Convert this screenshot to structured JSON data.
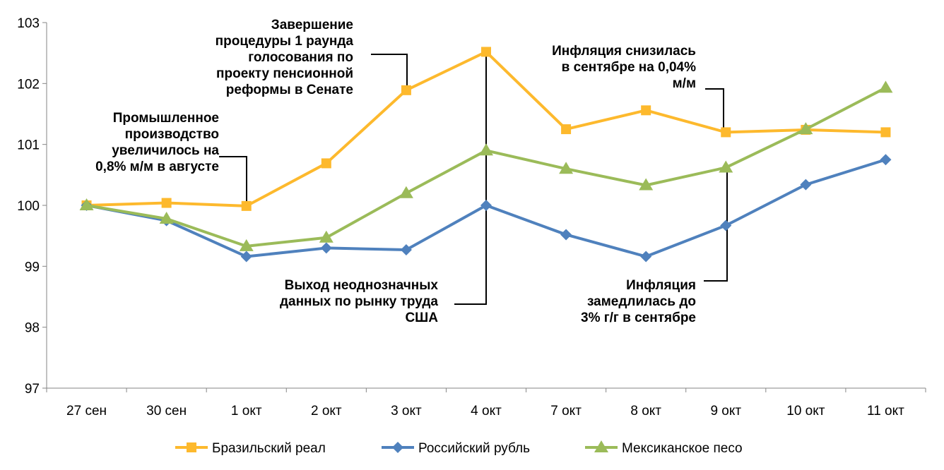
{
  "chart_data": {
    "type": "line",
    "categories": [
      "27 сен",
      "30 сен",
      "1 окт",
      "2 окт",
      "3 окт",
      "4 окт",
      "7 окт",
      "8 окт",
      "9 окт",
      "10 окт",
      "11 окт"
    ],
    "ylim": [
      97,
      103
    ],
    "yticks": [
      "97",
      "98",
      "99",
      "100",
      "101",
      "102",
      "103"
    ],
    "grid": false,
    "legend": "bottom",
    "series": [
      {
        "name": "Бразильский реал",
        "color": "#FDB92D",
        "marker": "square",
        "values": [
          100.0,
          100.04,
          99.99,
          100.69,
          101.89,
          102.52,
          101.25,
          101.56,
          101.2,
          101.24,
          101.2
        ]
      },
      {
        "name": "Российский рубль",
        "color": "#4F81BD",
        "marker": "diamond",
        "values": [
          100.0,
          99.75,
          99.16,
          99.3,
          99.27,
          100.0,
          99.52,
          99.16,
          99.67,
          100.34,
          100.75
        ]
      },
      {
        "name": "Мексиканское песо",
        "color": "#9BBB59",
        "marker": "triangle",
        "values": [
          100.0,
          99.78,
          99.33,
          99.47,
          100.2,
          100.9,
          100.6,
          100.33,
          100.62,
          101.25,
          101.93
        ]
      }
    ],
    "annotations": [
      {
        "lines": [
          "Промышленное",
          "производство",
          "увеличилось на",
          "0,8% м/м  в августе"
        ],
        "category": "1 окт",
        "value": 99.99
      },
      {
        "lines": [
          "Завершение",
          "процедуры 1 раунда",
          "голосования по",
          "проекту пенсионной",
          "реформы в Сенате"
        ],
        "category": "3 окт",
        "value": 101.89
      },
      {
        "lines": [
          "Выход неоднозначных",
          "данных по рынку труда",
          "США"
        ],
        "category": "4 окт",
        "value": 102.52
      },
      {
        "lines": [
          "Инфляция снизилась",
          "в сентябре на 0,04%",
          "м/м"
        ],
        "category": "9 окт",
        "value": 101.2
      },
      {
        "lines": [
          "Инфляция",
          "замедлилась до",
          "3% г/г в сентябре"
        ],
        "category": "9 окт",
        "value": 100.62
      }
    ]
  }
}
